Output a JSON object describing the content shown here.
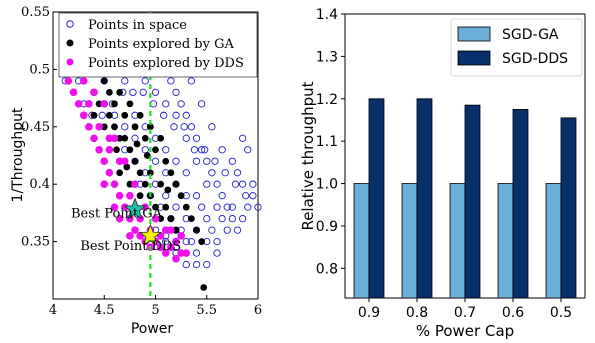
{
  "chart_data": [
    {
      "type": "scatter",
      "xlabel": "Power",
      "ylabel": "1/Throughput",
      "xlim": [
        4,
        6
      ],
      "ylim": [
        0.3,
        0.55
      ],
      "x_ticks": [
        "4",
        "4.5",
        "5",
        "5.5",
        "6"
      ],
      "y_ticks": [
        "0.35",
        "0.4",
        "0.45",
        "0.5",
        "0.55"
      ],
      "legend_position": "top",
      "vline_x": 4.95,
      "series": [
        {
          "name": "Points in space",
          "marker": "hollow-circle",
          "color": "#1f1fd0",
          "points": [
            [
              4.2,
              0.5
            ],
            [
              4.25,
              0.49
            ],
            [
              4.3,
              0.5
            ],
            [
              4.35,
              0.51
            ],
            [
              4.4,
              0.52
            ],
            [
              4.45,
              0.51
            ],
            [
              4.5,
              0.52
            ],
            [
              4.55,
              0.53
            ],
            [
              4.6,
              0.52
            ],
            [
              4.65,
              0.53
            ],
            [
              4.7,
              0.52
            ],
            [
              4.75,
              0.53
            ],
            [
              4.8,
              0.52
            ],
            [
              4.85,
              0.53
            ],
            [
              4.9,
              0.52
            ],
            [
              4.95,
              0.53
            ],
            [
              5.0,
              0.52
            ],
            [
              5.05,
              0.51
            ],
            [
              5.1,
              0.5
            ],
            [
              5.15,
              0.49
            ],
            [
              5.2,
              0.48
            ],
            [
              5.25,
              0.47
            ],
            [
              5.3,
              0.46
            ],
            [
              5.35,
              0.45
            ],
            [
              5.4,
              0.44
            ],
            [
              5.45,
              0.43
            ],
            [
              5.5,
              0.42
            ],
            [
              5.55,
              0.41
            ],
            [
              5.6,
              0.4
            ],
            [
              5.65,
              0.39
            ],
            [
              5.7,
              0.38
            ],
            [
              5.75,
              0.37
            ],
            [
              5.8,
              0.36
            ],
            [
              5.85,
              0.37
            ],
            [
              5.9,
              0.38
            ],
            [
              5.95,
              0.39
            ],
            [
              6.0,
              0.38
            ],
            [
              4.3,
              0.47
            ],
            [
              4.4,
              0.48
            ],
            [
              4.5,
              0.49
            ],
            [
              4.6,
              0.5
            ],
            [
              4.7,
              0.49
            ],
            [
              4.8,
              0.5
            ],
            [
              4.9,
              0.49
            ],
            [
              5.0,
              0.48
            ],
            [
              5.1,
              0.47
            ],
            [
              5.2,
              0.46
            ],
            [
              5.3,
              0.44
            ],
            [
              5.4,
              0.42
            ],
            [
              5.5,
              0.4
            ],
            [
              5.6,
              0.38
            ],
            [
              5.7,
              0.36
            ],
            [
              4.6,
              0.46
            ],
            [
              4.7,
              0.45
            ],
            [
              4.8,
              0.46
            ],
            [
              4.9,
              0.45
            ],
            [
              5.0,
              0.44
            ],
            [
              5.1,
              0.43
            ],
            [
              5.2,
              0.42
            ],
            [
              5.3,
              0.41
            ],
            [
              5.4,
              0.39
            ],
            [
              5.5,
              0.37
            ],
            [
              5.6,
              0.35
            ],
            [
              4.8,
              0.42
            ],
            [
              4.9,
              0.41
            ],
            [
              5.0,
              0.4
            ],
            [
              5.1,
              0.39
            ],
            [
              5.2,
              0.38
            ],
            [
              5.3,
              0.37
            ],
            [
              5.4,
              0.36
            ],
            [
              5.5,
              0.35
            ],
            [
              5.6,
              0.34
            ],
            [
              5.0,
              0.36
            ],
            [
              5.1,
              0.35
            ],
            [
              5.2,
              0.34
            ],
            [
              5.3,
              0.33
            ],
            [
              5.4,
              0.33
            ],
            [
              5.2,
              0.36
            ],
            [
              5.45,
              0.38
            ],
            [
              5.75,
              0.42
            ],
            [
              5.85,
              0.44
            ],
            [
              5.9,
              0.43
            ],
            [
              5.8,
              0.41
            ],
            [
              5.65,
              0.43
            ],
            [
              5.55,
              0.45
            ],
            [
              5.45,
              0.47
            ],
            [
              5.35,
              0.49
            ],
            [
              5.25,
              0.5
            ],
            [
              5.15,
              0.52
            ],
            [
              5.05,
              0.54
            ],
            [
              4.95,
              0.545
            ],
            [
              4.85,
              0.54
            ],
            [
              4.75,
              0.545
            ],
            [
              4.65,
              0.54
            ],
            [
              4.55,
              0.545
            ],
            [
              4.45,
              0.53
            ],
            [
              4.35,
              0.53
            ],
            [
              4.25,
              0.52
            ],
            [
              4.15,
              0.51
            ],
            [
              4.12,
              0.49
            ],
            [
              5.95,
              0.4
            ],
            [
              5.88,
              0.39
            ],
            [
              5.78,
              0.4
            ],
            [
              5.68,
              0.41
            ],
            [
              5.58,
              0.42
            ],
            [
              5.48,
              0.43
            ],
            [
              5.38,
              0.43
            ],
            [
              5.28,
              0.45
            ],
            [
              5.18,
              0.45
            ],
            [
              5.08,
              0.46
            ],
            [
              4.98,
              0.47
            ],
            [
              4.88,
              0.48
            ],
            [
              4.78,
              0.48
            ],
            [
              4.68,
              0.48
            ],
            [
              4.58,
              0.47
            ],
            [
              4.48,
              0.46
            ],
            [
              4.38,
              0.46
            ],
            [
              5.3,
              0.39
            ],
            [
              5.2,
              0.4
            ],
            [
              5.1,
              0.41
            ],
            [
              5.0,
              0.42
            ],
            [
              4.9,
              0.43
            ],
            [
              4.8,
              0.44
            ],
            [
              4.7,
              0.43
            ],
            [
              5.35,
              0.35
            ],
            [
              5.25,
              0.36
            ],
            [
              5.15,
              0.37
            ],
            [
              5.05,
              0.38
            ],
            [
              4.95,
              0.39
            ],
            [
              4.85,
              0.4
            ],
            [
              5.5,
              0.33
            ],
            [
              5.4,
              0.34
            ],
            [
              5.3,
              0.35
            ],
            [
              5.2,
              0.345
            ],
            [
              5.1,
              0.355
            ],
            [
              5.0,
              0.35
            ],
            [
              5.55,
              0.36
            ],
            [
              5.65,
              0.37
            ],
            [
              5.75,
              0.38
            ],
            [
              5.85,
              0.4
            ]
          ]
        },
        {
          "name": "Points explored by GA",
          "marker": "filled-circle",
          "color": "#000000",
          "points": [
            [
              4.5,
              0.49
            ],
            [
              4.55,
              0.48
            ],
            [
              4.6,
              0.47
            ],
            [
              4.65,
              0.48
            ],
            [
              4.7,
              0.46
            ],
            [
              4.75,
              0.47
            ],
            [
              4.8,
              0.45
            ],
            [
              4.85,
              0.46
            ],
            [
              4.9,
              0.44
            ],
            [
              4.95,
              0.45
            ],
            [
              5.0,
              0.43
            ],
            [
              5.05,
              0.44
            ],
            [
              5.1,
              0.42
            ],
            [
              5.15,
              0.41
            ],
            [
              5.2,
              0.4
            ],
            [
              5.25,
              0.39
            ],
            [
              4.8,
              0.42
            ],
            [
              4.85,
              0.41
            ],
            [
              4.9,
              0.4
            ],
            [
              4.95,
              0.39
            ],
            [
              5.0,
              0.38
            ],
            [
              5.05,
              0.37
            ],
            [
              5.1,
              0.38
            ],
            [
              5.15,
              0.37
            ],
            [
              4.7,
              0.44
            ],
            [
              4.75,
              0.43
            ],
            [
              4.6,
              0.45
            ],
            [
              4.65,
              0.44
            ],
            [
              4.55,
              0.46
            ],
            [
              4.5,
              0.45
            ],
            [
              4.45,
              0.47
            ],
            [
              4.4,
              0.46
            ],
            [
              5.3,
              0.38
            ],
            [
              5.35,
              0.37
            ],
            [
              5.2,
              0.36
            ],
            [
              5.4,
              0.36
            ],
            [
              5.45,
              0.35
            ],
            [
              5.47,
              0.31
            ],
            [
              4.95,
              0.41
            ],
            [
              5.05,
              0.4
            ],
            [
              4.85,
              0.39
            ],
            [
              4.75,
              0.4
            ],
            [
              4.65,
              0.41
            ],
            [
              5.12,
              0.395
            ],
            [
              4.92,
              0.425
            ],
            [
              4.82,
              0.435
            ],
            [
              4.72,
              0.415
            ],
            [
              4.62,
              0.43
            ]
          ]
        },
        {
          "name": "Points explored by DDS",
          "marker": "filled-circle",
          "color": "#ee11ee",
          "points": [
            [
              4.2,
              0.48
            ],
            [
              4.25,
              0.47
            ],
            [
              4.3,
              0.46
            ],
            [
              4.35,
              0.45
            ],
            [
              4.4,
              0.44
            ],
            [
              4.45,
              0.43
            ],
            [
              4.5,
              0.42
            ],
            [
              4.55,
              0.41
            ],
            [
              4.6,
              0.4
            ],
            [
              4.65,
              0.39
            ],
            [
              4.7,
              0.38
            ],
            [
              4.75,
              0.37
            ],
            [
              4.8,
              0.36
            ],
            [
              4.85,
              0.355
            ],
            [
              4.9,
              0.35
            ],
            [
              4.95,
              0.345
            ],
            [
              5.0,
              0.35
            ],
            [
              5.05,
              0.345
            ],
            [
              5.1,
              0.34
            ],
            [
              5.15,
              0.345
            ],
            [
              5.2,
              0.335
            ],
            [
              5.25,
              0.34
            ],
            [
              4.3,
              0.49
            ],
            [
              4.4,
              0.48
            ],
            [
              4.5,
              0.47
            ],
            [
              4.6,
              0.44
            ],
            [
              4.7,
              0.42
            ],
            [
              4.8,
              0.4
            ],
            [
              4.9,
              0.38
            ],
            [
              5.0,
              0.37
            ],
            [
              5.1,
              0.36
            ],
            [
              5.2,
              0.35
            ],
            [
              5.3,
              0.34
            ],
            [
              4.45,
              0.45
            ],
            [
              4.55,
              0.44
            ],
            [
              4.65,
              0.42
            ],
            [
              4.75,
              0.39
            ],
            [
              4.85,
              0.37
            ],
            [
              4.95,
              0.36
            ],
            [
              5.05,
              0.355
            ],
            [
              4.35,
              0.47
            ],
            [
              4.25,
              0.5
            ],
            [
              4.15,
              0.49
            ],
            [
              4.55,
              0.43
            ],
            [
              4.65,
              0.37
            ],
            [
              4.75,
              0.355
            ],
            [
              5.15,
              0.36
            ],
            [
              5.25,
              0.355
            ],
            [
              4.6,
              0.38
            ],
            [
              4.5,
              0.4
            ]
          ]
        }
      ],
      "annotations": [
        {
          "text": "Best Point GA",
          "x": 4.8,
          "y": 0.378,
          "marker": "star",
          "color": "#20c0b0"
        },
        {
          "text": "Best Point DDS",
          "x": 4.95,
          "y": 0.355,
          "marker": "star",
          "color": "#f5f500"
        }
      ]
    },
    {
      "type": "bar",
      "xlabel": "% Power Cap",
      "ylabel": "Relative throughput",
      "categories": [
        "0.9",
        "0.8",
        "0.7",
        "0.6",
        "0.5"
      ],
      "ylim": [
        0.73,
        1.4
      ],
      "y_ticks": [
        "0.8",
        "0.9",
        "1.0",
        "1.1",
        "1.2",
        "1.3",
        "1.4"
      ],
      "legend_position": "top-right",
      "series": [
        {
          "name": "SGD-GA",
          "color": "#6baed6",
          "values": [
            1.0,
            1.0,
            1.0,
            1.0,
            1.0
          ]
        },
        {
          "name": "SGD-DDS",
          "color": "#08306b",
          "values": [
            1.2,
            1.2,
            1.185,
            1.175,
            1.155
          ]
        }
      ]
    }
  ]
}
